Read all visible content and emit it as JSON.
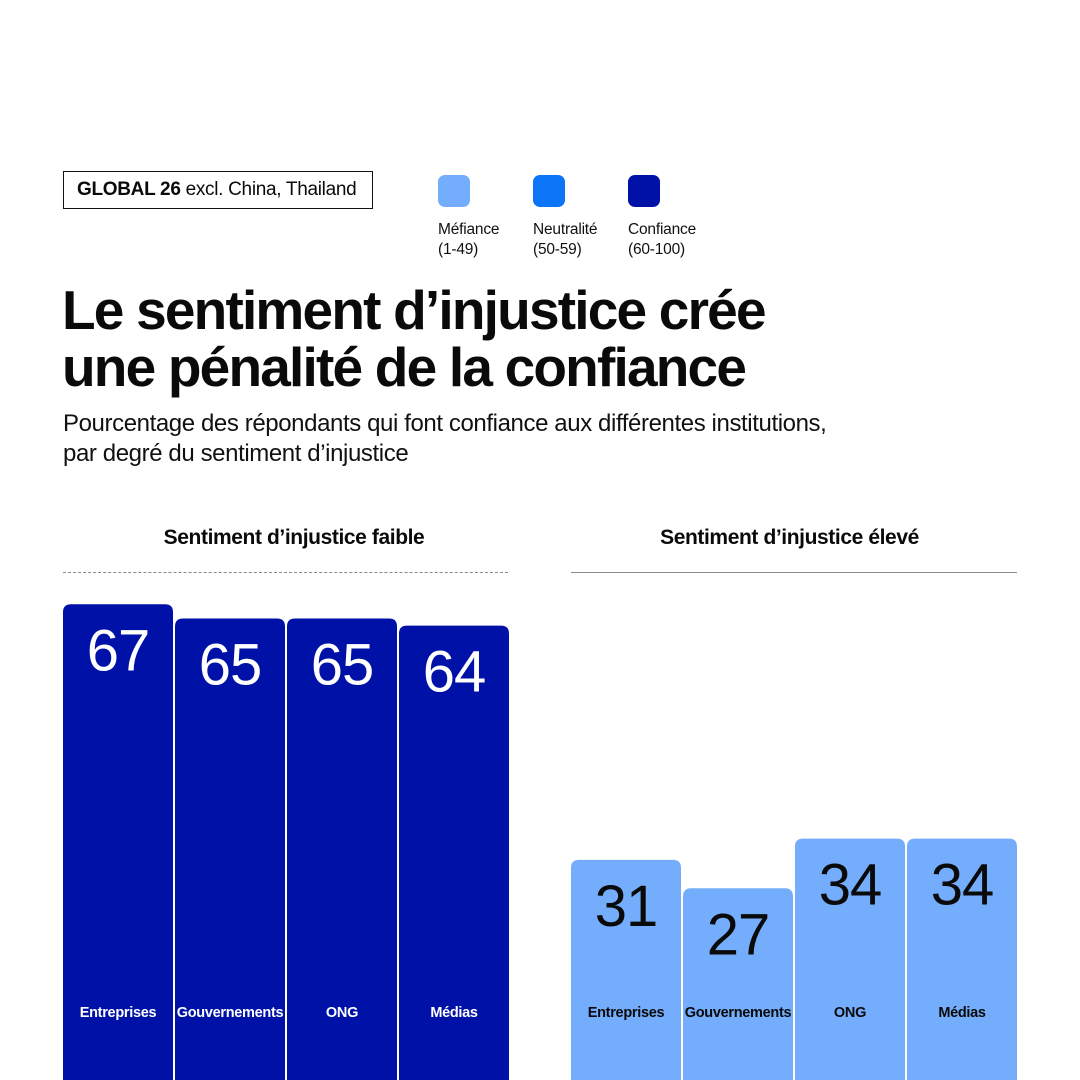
{
  "header": {
    "scope_bold": "GLOBAL 26",
    "scope_rest": "excl. China, Thailand"
  },
  "legend": [
    {
      "line1": "Méfiance",
      "line2": "(1-49)",
      "color": "#74adfc"
    },
    {
      "line1": "Neutralité",
      "line2": "(50-59)",
      "color": "#0b74f7"
    },
    {
      "line1": "Confiance",
      "line2": "(60-100)",
      "color": "#0011a8"
    }
  ],
  "title": {
    "line1": "Le sentiment d’injustice crée",
    "line2": "une pénalité de la confiance"
  },
  "subtitle": {
    "line1": "Pourcentage des répondants qui font confiance aux différentes institutions,",
    "line2": "par degré du sentiment d’injustice"
  },
  "chart_data": [
    {
      "type": "bar",
      "title": "Sentiment d’injustice faible",
      "categories": [
        "Entreprises",
        "Gouvernements",
        "ONG",
        "Médias"
      ],
      "values": [
        67,
        65,
        65,
        64
      ],
      "colors": [
        "#0011a8",
        "#0011a8",
        "#0011a8",
        "#0011a8"
      ],
      "label_color": "#ffffff",
      "ylim": [
        0,
        100
      ]
    },
    {
      "type": "bar",
      "title": "Sentiment d’injustice élevé",
      "categories": [
        "Entreprises",
        "Gouvernements",
        "ONG",
        "Médias"
      ],
      "values": [
        31,
        27,
        34,
        34
      ],
      "colors": [
        "#74adfc",
        "#74adfc",
        "#74adfc",
        "#74adfc"
      ],
      "label_color": "#0a0a0a",
      "ylim": [
        0,
        100
      ]
    }
  ]
}
